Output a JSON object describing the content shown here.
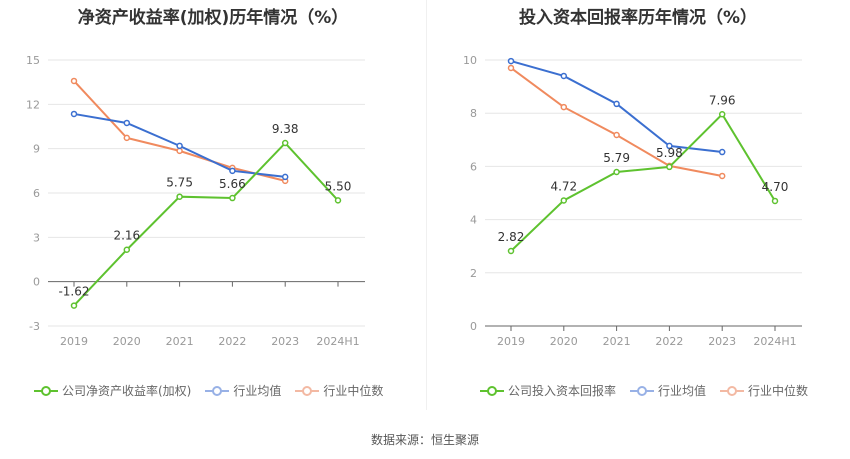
{
  "source": "数据来源：恒生聚源",
  "colors": {
    "company": "#5ec22f",
    "avg": "#3b6fd0",
    "median": "#f08a5e",
    "avg_legend": "#98b1e6",
    "median_legend": "#f3b9a3"
  },
  "chart_data": [
    {
      "type": "line",
      "title": "净资产收益率(加权)历年情况（%）",
      "categories": [
        "2019",
        "2020",
        "2021",
        "2022",
        "2023",
        "2024H1"
      ],
      "ylim": [
        -3,
        15
      ],
      "yticks": [
        -3,
        0,
        3,
        6,
        9,
        12,
        15
      ],
      "grid": true,
      "legend_placement": "bottom",
      "series": [
        {
          "name": "公司净资产收益率(加权)",
          "key": "company",
          "values": [
            -1.62,
            2.16,
            5.75,
            5.66,
            9.38,
            5.5
          ],
          "labels": [
            "-1.62",
            "2.16",
            "5.75",
            "5.66",
            "9.38",
            "5.50"
          ]
        },
        {
          "name": "行业均值",
          "key": "avg",
          "values": [
            11.35,
            10.74,
            9.19,
            7.5,
            7.09,
            null
          ]
        },
        {
          "name": "行业中位数",
          "key": "median",
          "values": [
            13.58,
            9.73,
            8.85,
            7.7,
            6.82,
            null
          ]
        }
      ]
    },
    {
      "type": "line",
      "title": "投入资本回报率历年情况（%）",
      "categories": [
        "2019",
        "2020",
        "2021",
        "2022",
        "2023",
        "2024H1"
      ],
      "ylim": [
        0,
        10
      ],
      "yticks": [
        0,
        2,
        4,
        6,
        8,
        10
      ],
      "grid": true,
      "legend_placement": "bottom",
      "series": [
        {
          "name": "公司投入资本回报率",
          "key": "company",
          "values": [
            2.82,
            4.72,
            5.79,
            5.98,
            7.96,
            4.7
          ],
          "labels": [
            "2.82",
            "4.72",
            "5.79",
            "5.98",
            "7.96",
            "4.70"
          ]
        },
        {
          "name": "行业均值",
          "key": "avg",
          "values": [
            9.96,
            9.4,
            8.35,
            6.77,
            6.54,
            null
          ]
        },
        {
          "name": "行业中位数",
          "key": "median",
          "values": [
            9.7,
            8.23,
            7.18,
            6.02,
            5.64,
            null
          ]
        }
      ]
    }
  ]
}
